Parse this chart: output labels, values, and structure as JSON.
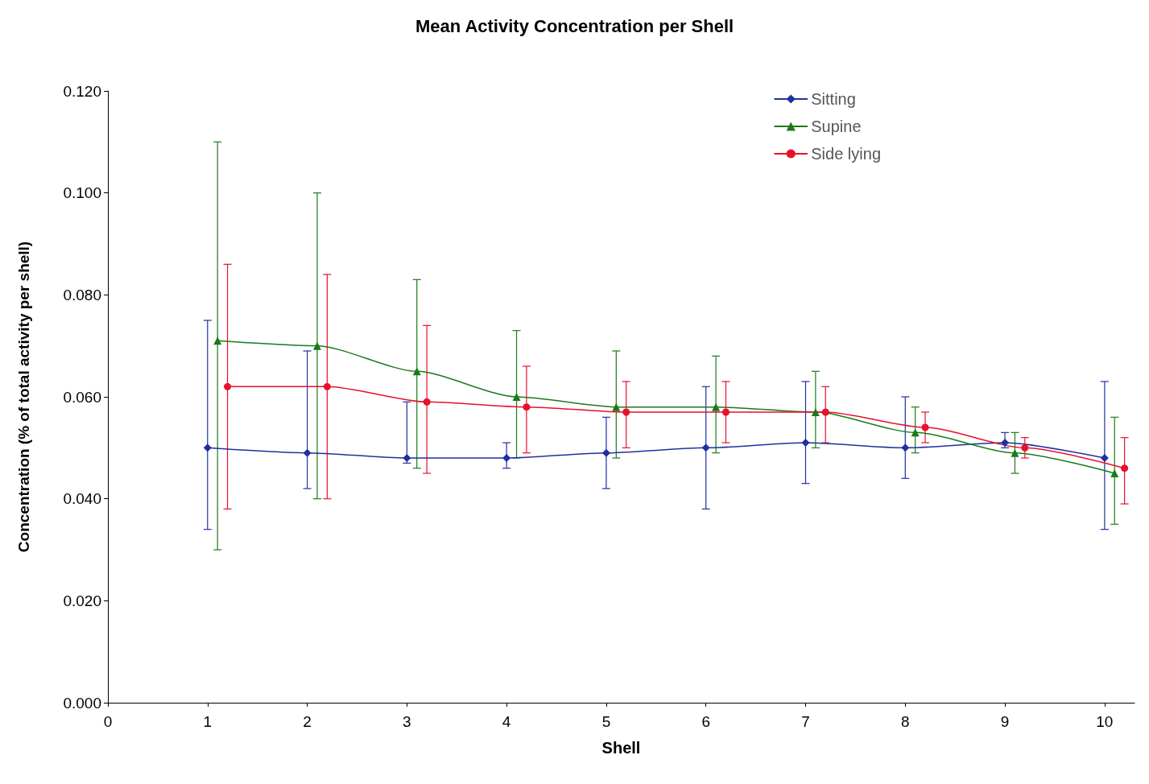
{
  "chart_data": {
    "type": "line",
    "title": "Mean Activity Concentration per Shell",
    "xlabel": "Shell",
    "ylabel": "Concentration (% of total activity per shell)",
    "xlim": [
      0,
      10.3
    ],
    "xticks": [
      0,
      1,
      2,
      3,
      4,
      5,
      6,
      7,
      8,
      9,
      10
    ],
    "ylim": [
      0,
      0.12
    ],
    "yticks": [
      {
        "value": 0,
        "label": "0.000"
      },
      {
        "value": 0.02,
        "label": "0.020"
      },
      {
        "value": 0.04,
        "label": "0.040"
      },
      {
        "value": 0.06,
        "label": "0.060"
      },
      {
        "value": 0.08,
        "label": "0.080"
      },
      {
        "value": 0.1,
        "label": "0.100"
      },
      {
        "value": 0.12,
        "label": "0.120"
      }
    ],
    "grid": false,
    "legend": "top right",
    "line_style": "solid",
    "series": [
      {
        "name": "Sitting",
        "color": "#2030a0",
        "marker": "diamond",
        "x": [
          1,
          2,
          3,
          4,
          5,
          6,
          7,
          8,
          9,
          10
        ],
        "values": [
          0.05,
          0.049,
          0.048,
          0.048,
          0.049,
          0.05,
          0.051,
          0.05,
          0.051,
          0.048
        ],
        "errors": [
          [
            0.034,
            0.075
          ],
          [
            0.042,
            0.069
          ],
          [
            0.047,
            0.059
          ],
          [
            0.046,
            0.051
          ],
          [
            0.042,
            0.056
          ],
          [
            0.038,
            0.062
          ],
          [
            0.043,
            0.063
          ],
          [
            0.044,
            0.06
          ],
          [
            0.05,
            0.053
          ],
          [
            0.034,
            0.063
          ]
        ]
      },
      {
        "name": "Supine",
        "color": "#1a7a1a",
        "marker": "triangle",
        "x": [
          1.1,
          2.1,
          3.1,
          4.1,
          5.1,
          6.1,
          7.1,
          8.1,
          9.1,
          10.1
        ],
        "values": [
          0.071,
          0.07,
          0.065,
          0.06,
          0.058,
          0.058,
          0.057,
          0.053,
          0.049,
          0.045
        ],
        "errors": [
          [
            0.03,
            0.11
          ],
          [
            0.04,
            0.1
          ],
          [
            0.046,
            0.083
          ],
          [
            0.048,
            0.073
          ],
          [
            0.048,
            0.069
          ],
          [
            0.049,
            0.068
          ],
          [
            0.05,
            0.065
          ],
          [
            0.049,
            0.058
          ],
          [
            0.045,
            0.053
          ],
          [
            0.035,
            0.056
          ]
        ]
      },
      {
        "name": "Side lying",
        "color": "#e8102a",
        "marker": "circle",
        "x": [
          1.2,
          2.2,
          3.2,
          4.2,
          5.2,
          6.2,
          7.2,
          8.2,
          9.2,
          10.2
        ],
        "values": [
          0.062,
          0.062,
          0.059,
          0.058,
          0.057,
          0.057,
          0.057,
          0.054,
          0.05,
          0.046
        ],
        "errors": [
          [
            0.038,
            0.086
          ],
          [
            0.04,
            0.084
          ],
          [
            0.045,
            0.074
          ],
          [
            0.049,
            0.066
          ],
          [
            0.05,
            0.063
          ],
          [
            0.051,
            0.063
          ],
          [
            0.051,
            0.062
          ],
          [
            0.051,
            0.057
          ],
          [
            0.048,
            0.052
          ],
          [
            0.039,
            0.052
          ]
        ]
      }
    ]
  }
}
